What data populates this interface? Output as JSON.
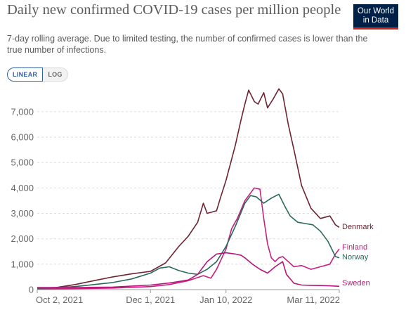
{
  "header": {
    "title": "Daily new confirmed COVID-19 cases per million people",
    "subtitle": "7-day rolling average. Due to limited testing, the number of confirmed cases is lower than the true number of infections.",
    "logo_line1": "Our World",
    "logo_line2": "in Data"
  },
  "controls": {
    "linear_label": "LINEAR",
    "log_label": "LOG",
    "selected": "LINEAR"
  },
  "colors": {
    "Denmark": "#6d2332",
    "Finland": "#c5207e",
    "Norway": "#286a5a",
    "Sweden": "#b5177a",
    "grid": "#dddddd"
  },
  "chart_data": {
    "type": "line",
    "title": "Daily new confirmed COVID-19 cases per million people",
    "ylim": [
      0,
      7800
    ],
    "yticks": [
      0,
      1000,
      2000,
      3000,
      4000,
      5000,
      6000,
      7000
    ],
    "ytick_labels": [
      "0",
      "1,000",
      "2,000",
      "3,000",
      "4,000",
      "5,000",
      "6,000",
      "7,000"
    ],
    "xticks": [
      "Oct 2, 2021",
      "Dec 1, 2021",
      "Jan 10, 2022",
      "Mar 11, 2022"
    ],
    "xtick_days": [
      0,
      60,
      100,
      160
    ],
    "xlim_days": [
      0,
      160
    ],
    "x_unit": "date",
    "grid": "horizontal dashed",
    "legend": "labels at line ends",
    "series": [
      {
        "name": "Denmark",
        "x": [
          0,
          10,
          20,
          30,
          40,
          50,
          60,
          68,
          75,
          80,
          85,
          88,
          90,
          95,
          97,
          100,
          105,
          108,
          110,
          112,
          115,
          117,
          120,
          122,
          125,
          128,
          130,
          133,
          136,
          140,
          145,
          150,
          155,
          158,
          160
        ],
        "y": [
          50,
          80,
          200,
          350,
          500,
          620,
          720,
          1050,
          1700,
          2100,
          2650,
          3400,
          3000,
          3100,
          3600,
          4300,
          5700,
          6700,
          7300,
          7850,
          7400,
          7300,
          7750,
          7150,
          7500,
          7900,
          7700,
          6500,
          5500,
          4100,
          3200,
          2800,
          2900,
          2550,
          2450
        ]
      },
      {
        "name": "Finland",
        "x": [
          0,
          20,
          40,
          60,
          70,
          80,
          88,
          92,
          95,
          100,
          103,
          106,
          110,
          112,
          115,
          118,
          120,
          122,
          124,
          126,
          128,
          130,
          133,
          136,
          140,
          145,
          150,
          155,
          158,
          160
        ],
        "y": [
          30,
          40,
          60,
          120,
          200,
          350,
          550,
          450,
          800,
          1600,
          2400,
          2800,
          3500,
          3700,
          4000,
          3950,
          2800,
          1800,
          1250,
          1100,
          1250,
          1300,
          1100,
          900,
          950,
          800,
          900,
          1000,
          1400,
          1600
        ]
      },
      {
        "name": "Norway",
        "x": [
          0,
          10,
          20,
          30,
          40,
          50,
          60,
          65,
          70,
          75,
          80,
          85,
          90,
          95,
          100,
          105,
          110,
          113,
          116,
          120,
          124,
          128,
          131,
          134,
          138,
          142,
          146,
          150,
          154,
          158,
          160
        ],
        "y": [
          60,
          80,
          120,
          200,
          280,
          420,
          650,
          850,
          900,
          750,
          650,
          600,
          800,
          1100,
          1700,
          2500,
          3400,
          3700,
          3650,
          3400,
          3600,
          3750,
          3300,
          2900,
          2650,
          2600,
          2550,
          2300,
          1900,
          1300,
          1250
        ]
      },
      {
        "name": "Sweden",
        "x": [
          0,
          20,
          40,
          60,
          70,
          80,
          85,
          90,
          95,
          100,
          105,
          108,
          110,
          114,
          118,
          122,
          126,
          130,
          132,
          136,
          140,
          145,
          150,
          155,
          160
        ],
        "y": [
          80,
          80,
          100,
          180,
          260,
          380,
          600,
          1100,
          1400,
          1450,
          1400,
          1350,
          1250,
          1000,
          800,
          650,
          900,
          1100,
          600,
          250,
          180,
          170,
          160,
          150,
          130
        ]
      }
    ]
  }
}
